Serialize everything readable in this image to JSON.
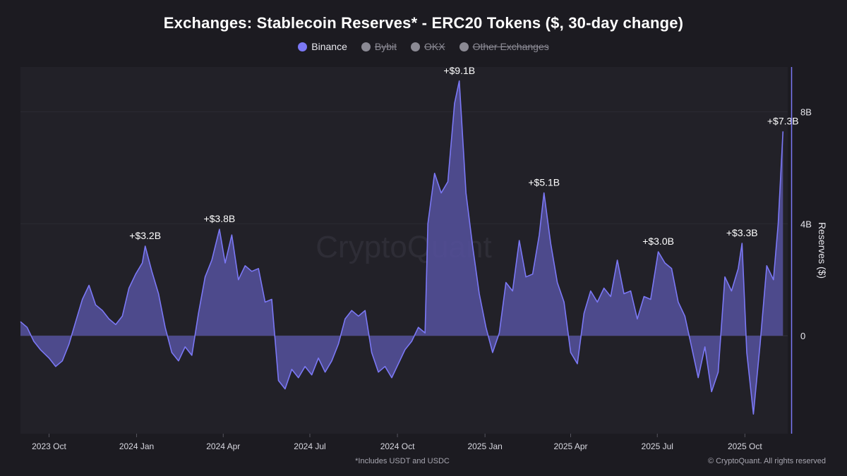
{
  "title": "Exchanges: Stablecoin Reserves* - ERC20 Tokens ($, 30-day change)",
  "legend": [
    {
      "label": "Binance",
      "color": "#7b78f5",
      "active": true
    },
    {
      "label": "Bybit",
      "color": "#8b8a94",
      "active": false
    },
    {
      "label": "OKX",
      "color": "#8b8a94",
      "active": false
    },
    {
      "label": "Other Exchanges",
      "color": "#8b8a94",
      "active": false
    }
  ],
  "watermark": "CryptoQuant",
  "footnote": "*Includes USDT and USDC",
  "copyright": "© CryptoQuant. All rights reserved",
  "colors": {
    "background": "#1c1b21",
    "plot_bg": "#222128",
    "series": "#7b78f5",
    "fill": "#55519e"
  },
  "chart_data": {
    "type": "area",
    "ylabel": "Reserves ($)",
    "unit": "B",
    "xlim": [
      "2023-09-01",
      "2025-11-15"
    ],
    "ylim": [
      -3.5,
      9.6
    ],
    "y_ticks": [
      {
        "value": 0,
        "label": "0"
      },
      {
        "value": 4,
        "label": "4B"
      },
      {
        "value": 8,
        "label": "8B"
      }
    ],
    "x_ticks": [
      {
        "date": "2023-10-01",
        "label": "2023 Oct"
      },
      {
        "date": "2024-01-01",
        "label": "2024 Jan"
      },
      {
        "date": "2024-04-01",
        "label": "2024 Apr"
      },
      {
        "date": "2024-07-01",
        "label": "2024 Jul"
      },
      {
        "date": "2024-10-01",
        "label": "2024 Oct"
      },
      {
        "date": "2025-01-01",
        "label": "2025 Jan"
      },
      {
        "date": "2025-04-01",
        "label": "2025 Apr"
      },
      {
        "date": "2025-07-01",
        "label": "2025 Jul"
      },
      {
        "date": "2025-10-01",
        "label": "2025 Oct"
      }
    ],
    "annotations": [
      {
        "date": "2024-01-10",
        "value": 3.2,
        "label": "+$3.2B"
      },
      {
        "date": "2024-03-28",
        "value": 3.8,
        "label": "+$3.8B"
      },
      {
        "date": "2024-12-05",
        "value": 9.1,
        "label": "+$9.1B"
      },
      {
        "date": "2025-03-04",
        "value": 5.1,
        "label": "+$5.1B"
      },
      {
        "date": "2025-07-02",
        "value": 3.0,
        "label": "+$3.0B"
      },
      {
        "date": "2025-09-28",
        "value": 3.3,
        "label": "+$3.3B"
      },
      {
        "date": "2025-11-10",
        "value": 7.3,
        "label": "+$7.3B"
      }
    ],
    "series": [
      {
        "name": "Binance",
        "points": [
          [
            "2023-09-01",
            0.5
          ],
          [
            "2023-09-08",
            0.3
          ],
          [
            "2023-09-15",
            -0.2
          ],
          [
            "2023-09-22",
            -0.5
          ],
          [
            "2023-10-01",
            -0.8
          ],
          [
            "2023-10-08",
            -1.1
          ],
          [
            "2023-10-15",
            -0.9
          ],
          [
            "2023-10-22",
            -0.3
          ],
          [
            "2023-10-29",
            0.5
          ],
          [
            "2023-11-05",
            1.3
          ],
          [
            "2023-11-12",
            1.8
          ],
          [
            "2023-11-19",
            1.1
          ],
          [
            "2023-11-26",
            0.9
          ],
          [
            "2023-12-03",
            0.6
          ],
          [
            "2023-12-10",
            0.4
          ],
          [
            "2023-12-17",
            0.7
          ],
          [
            "2023-12-24",
            1.7
          ],
          [
            "2023-12-31",
            2.2
          ],
          [
            "2024-01-07",
            2.6
          ],
          [
            "2024-01-10",
            3.2
          ],
          [
            "2024-01-17",
            2.3
          ],
          [
            "2024-01-24",
            1.5
          ],
          [
            "2024-01-31",
            0.3
          ],
          [
            "2024-02-07",
            -0.6
          ],
          [
            "2024-02-14",
            -0.9
          ],
          [
            "2024-02-21",
            -0.4
          ],
          [
            "2024-02-28",
            -0.7
          ],
          [
            "2024-03-06",
            0.8
          ],
          [
            "2024-03-13",
            2.1
          ],
          [
            "2024-03-20",
            2.7
          ],
          [
            "2024-03-28",
            3.8
          ],
          [
            "2024-04-03",
            2.6
          ],
          [
            "2024-04-10",
            3.6
          ],
          [
            "2024-04-17",
            2.0
          ],
          [
            "2024-04-24",
            2.5
          ],
          [
            "2024-05-01",
            2.3
          ],
          [
            "2024-05-08",
            2.4
          ],
          [
            "2024-05-15",
            1.2
          ],
          [
            "2024-05-22",
            1.3
          ],
          [
            "2024-05-29",
            -1.6
          ],
          [
            "2024-06-05",
            -1.9
          ],
          [
            "2024-06-12",
            -1.2
          ],
          [
            "2024-06-19",
            -1.5
          ],
          [
            "2024-06-26",
            -1.1
          ],
          [
            "2024-07-03",
            -1.4
          ],
          [
            "2024-07-10",
            -0.8
          ],
          [
            "2024-07-17",
            -1.3
          ],
          [
            "2024-07-24",
            -0.9
          ],
          [
            "2024-07-31",
            -0.3
          ],
          [
            "2024-08-07",
            0.6
          ],
          [
            "2024-08-14",
            0.9
          ],
          [
            "2024-08-21",
            0.7
          ],
          [
            "2024-08-28",
            0.9
          ],
          [
            "2024-09-04",
            -0.6
          ],
          [
            "2024-09-11",
            -1.3
          ],
          [
            "2024-09-18",
            -1.1
          ],
          [
            "2024-09-25",
            -1.5
          ],
          [
            "2024-10-02",
            -1.0
          ],
          [
            "2024-10-09",
            -0.5
          ],
          [
            "2024-10-16",
            -0.2
          ],
          [
            "2024-10-23",
            0.3
          ],
          [
            "2024-10-30",
            0.1
          ],
          [
            "2024-11-02",
            4.0
          ],
          [
            "2024-11-09",
            5.8
          ],
          [
            "2024-11-16",
            5.1
          ],
          [
            "2024-11-23",
            5.5
          ],
          [
            "2024-11-30",
            8.3
          ],
          [
            "2024-12-05",
            9.1
          ],
          [
            "2024-12-12",
            5.1
          ],
          [
            "2024-12-19",
            3.2
          ],
          [
            "2024-12-26",
            1.5
          ],
          [
            "2025-01-02",
            0.3
          ],
          [
            "2025-01-09",
            -0.6
          ],
          [
            "2025-01-16",
            0.1
          ],
          [
            "2025-01-23",
            1.9
          ],
          [
            "2025-01-30",
            1.6
          ],
          [
            "2025-02-06",
            3.4
          ],
          [
            "2025-02-13",
            2.1
          ],
          [
            "2025-02-20",
            2.2
          ],
          [
            "2025-02-27",
            3.6
          ],
          [
            "2025-03-04",
            5.1
          ],
          [
            "2025-03-11",
            3.3
          ],
          [
            "2025-03-18",
            1.9
          ],
          [
            "2025-03-25",
            1.2
          ],
          [
            "2025-04-01",
            -0.6
          ],
          [
            "2025-04-08",
            -1.0
          ],
          [
            "2025-04-15",
            0.8
          ],
          [
            "2025-04-22",
            1.6
          ],
          [
            "2025-04-29",
            1.2
          ],
          [
            "2025-05-06",
            1.7
          ],
          [
            "2025-05-13",
            1.4
          ],
          [
            "2025-05-20",
            2.7
          ],
          [
            "2025-05-27",
            1.5
          ],
          [
            "2025-06-03",
            1.6
          ],
          [
            "2025-06-10",
            0.6
          ],
          [
            "2025-06-17",
            1.4
          ],
          [
            "2025-06-24",
            1.3
          ],
          [
            "2025-07-02",
            3.0
          ],
          [
            "2025-07-09",
            2.6
          ],
          [
            "2025-07-16",
            2.4
          ],
          [
            "2025-07-23",
            1.2
          ],
          [
            "2025-07-30",
            0.7
          ],
          [
            "2025-08-06",
            -0.4
          ],
          [
            "2025-08-13",
            -1.5
          ],
          [
            "2025-08-20",
            -0.4
          ],
          [
            "2025-08-27",
            -2.0
          ],
          [
            "2025-09-03",
            -1.3
          ],
          [
            "2025-09-10",
            2.1
          ],
          [
            "2025-09-17",
            1.6
          ],
          [
            "2025-09-24",
            2.4
          ],
          [
            "2025-09-28",
            3.3
          ],
          [
            "2025-10-03",
            -0.6
          ],
          [
            "2025-10-10",
            -2.8
          ],
          [
            "2025-10-17",
            -0.3
          ],
          [
            "2025-10-24",
            2.5
          ],
          [
            "2025-10-31",
            2.0
          ],
          [
            "2025-11-05",
            4.0
          ],
          [
            "2025-11-10",
            7.3
          ]
        ]
      }
    ]
  }
}
